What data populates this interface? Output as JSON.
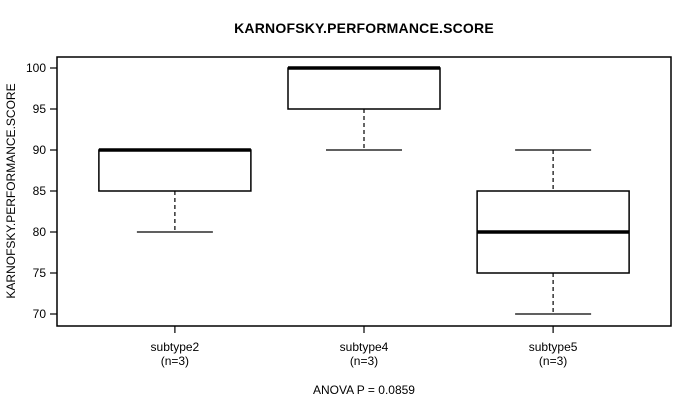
{
  "chart_data": {
    "type": "box",
    "title": "KARNOFSKY.PERFORMANCE.SCORE",
    "ylabel": "KARNOFSKY.PERFORMANCE.SCORE",
    "xlabel": "",
    "ylim": [
      70,
      100
    ],
    "yticks": [
      70,
      75,
      80,
      85,
      90,
      95,
      100
    ],
    "grid": false,
    "legend": "none",
    "annotation": "ANOVA P = 0.0859",
    "groups": [
      {
        "label": "subtype2",
        "sublabel": "(n=3)",
        "whisker_low": 80,
        "q1": 85,
        "median": 90,
        "q3": 90,
        "whisker_high": 90,
        "outliers": []
      },
      {
        "label": "subtype4",
        "sublabel": "(n=3)",
        "whisker_low": 90,
        "q1": 95,
        "median": 100,
        "q3": 100,
        "whisker_high": 100,
        "outliers": []
      },
      {
        "label": "subtype5",
        "sublabel": "(n=3)",
        "whisker_low": 70,
        "q1": 75,
        "median": 80,
        "q3": 85,
        "whisker_high": 90,
        "outliers": []
      }
    ],
    "colors": {
      "box_fill": "#ffffff",
      "box_border": "#000000",
      "median": "#000000",
      "frame": "#000000",
      "text": "#000000",
      "background": "#ffffff"
    }
  }
}
